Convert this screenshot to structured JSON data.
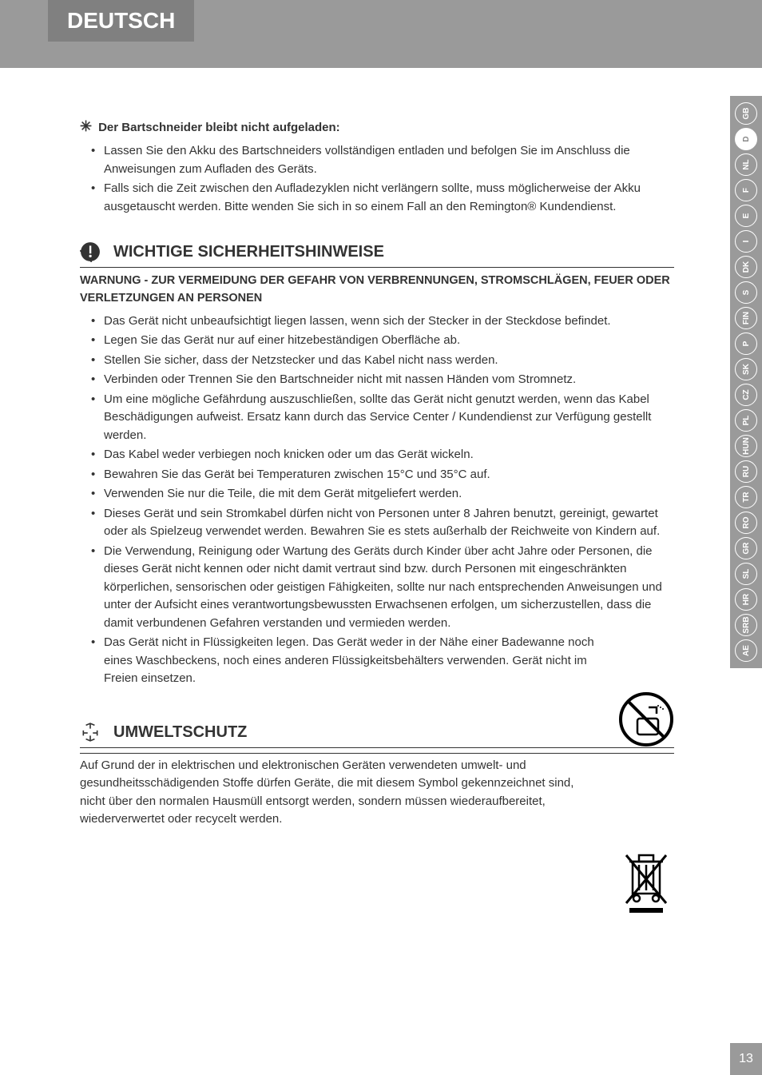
{
  "header": {
    "language": "DEUTSCH"
  },
  "sideTabs": {
    "items": [
      "GB",
      "D",
      "NL",
      "F",
      "E",
      "I",
      "DK",
      "S",
      "FIN",
      "P",
      "SK",
      "CZ",
      "PL",
      "HUN",
      "RU",
      "TR",
      "RO",
      "GR",
      "SL",
      "HR",
      "SRB",
      "AE"
    ],
    "activeIndex": 1
  },
  "troubleshoot": {
    "title": "Der Bartschneider bleibt nicht aufgeladen:",
    "items": [
      "Lassen Sie den Akku des Bartschneiders vollständigen entladen und befolgen Sie im Anschluss die Anweisungen zum Aufladen des Geräts.",
      "Falls sich die Zeit zwischen den Aufladezyklen nicht verlängern sollte, muss möglicherweise der Akku ausgetauscht werden. Bitte wenden Sie sich in so einem Fall an den Remington® Kundendienst."
    ]
  },
  "safety": {
    "title": "WICHTIGE SICHERHEITSHINWEISE",
    "subtitle": "WARNUNG - ZUR VERMEIDUNG DER GEFAHR VON VERBRENNUNGEN, STROMSCHLÄGEN, FEUER ODER VERLETZUNGEN AN PERSONEN",
    "items": [
      "Das Gerät nicht unbeaufsichtigt liegen lassen, wenn sich der Stecker in der Steckdose befindet.",
      "Legen Sie das Gerät nur auf einer hitzebeständigen Oberfläche ab.",
      "Stellen Sie sicher, dass der Netzstecker und das Kabel nicht nass werden.",
      "Verbinden oder Trennen Sie den Bartschneider nicht mit nassen Händen vom Stromnetz.",
      "Um eine mögliche Gefährdung auszuschließen, sollte das Gerät nicht genutzt werden, wenn das Kabel Beschädigungen aufweist. Ersatz kann durch das Service Center / Kundendienst zur Verfügung gestellt werden.",
      "Das Kabel weder verbiegen noch knicken oder um das Gerät wickeln.",
      "Bewahren Sie das Gerät bei Temperaturen zwischen 15°C und 35°C auf.",
      "Verwenden Sie nur die Teile, die mit dem Gerät mitgeliefert werden.",
      "Dieses Gerät und sein Stromkabel dürfen nicht von Personen unter 8 Jahren benutzt, gereinigt, gewartet oder als Spielzeug verwendet werden. Bewahren Sie es stets außerhalb der Reichweite von Kindern auf.",
      "Die Verwendung, Reinigung oder Wartung des Geräts durch Kinder über acht Jahre oder Personen, die dieses Gerät nicht kennen oder nicht damit vertraut sind bzw. durch Personen mit eingeschränkten körperlichen, sensorischen oder geistigen Fähigkeiten, sollte nur nach entsprechenden Anweisungen und unter der Aufsicht eines verantwortungsbewussten Erwachsenen erfolgen, um sicherzustellen, dass die damit verbundenen Gefahren verstanden und vermieden werden.",
      "Das Gerät nicht in Flüssigkeiten legen. Das Gerät weder in der Nähe einer Badewanne noch eines Waschbeckens, noch eines anderen Flüssigkeitsbehälters verwenden. Gerät nicht im Freien einsetzen."
    ]
  },
  "umwelt": {
    "title": "UMWELTSCHUTZ",
    "text": "Auf Grund der in elektrischen und elektronischen Geräten verwendeten umwelt- und gesundheitsschädigenden Stoffe dürfen Geräte, die mit diesem Symbol gekennzeichnet sind, nicht über den normalen Hausmüll entsorgt werden, sondern müssen wiederaufbereitet, wiederverwertet oder recycelt werden."
  },
  "pageNumber": "13",
  "colors": {
    "bandGray": "#9a9a9a",
    "tabGray": "#808080",
    "text": "#333333",
    "white": "#ffffff"
  }
}
